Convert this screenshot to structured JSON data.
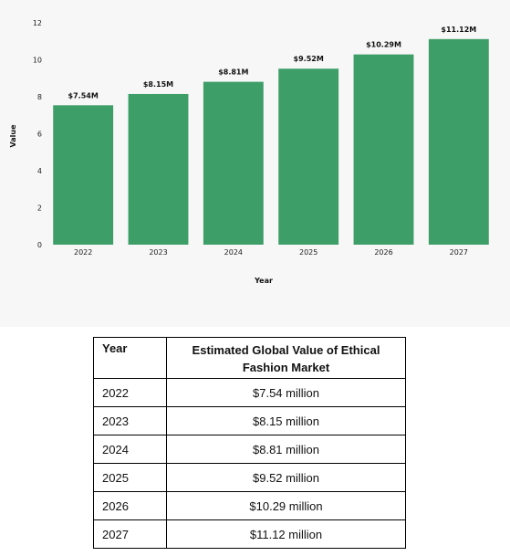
{
  "chart_data": {
    "type": "bar",
    "categories": [
      "2022",
      "2023",
      "2024",
      "2025",
      "2026",
      "2027"
    ],
    "values": [
      7.54,
      8.15,
      8.81,
      9.52,
      10.29,
      11.12
    ],
    "data_labels": [
      "$7.54M",
      "$8.15M",
      "$8.81M",
      "$9.52M",
      "$10.29M",
      "$11.12M"
    ],
    "title": "",
    "xlabel": "Year",
    "ylabel": "Value",
    "ylim": [
      0,
      12
    ],
    "yticks": [
      0,
      2,
      4,
      6,
      8,
      10,
      12
    ],
    "grid": false,
    "bar_color": "#3d9e68",
    "background": "#f7f7f7"
  },
  "table": {
    "headers": [
      "Year",
      "Estimated Global Value of Ethical Fashion Market"
    ],
    "rows": [
      [
        "2022",
        "$7.54 million"
      ],
      [
        "2023",
        "$8.15 million"
      ],
      [
        "2024",
        "$8.81 million"
      ],
      [
        "2025",
        "$9.52 million"
      ],
      [
        "2026",
        "$10.29 million"
      ],
      [
        "2027",
        "$11.12 million"
      ]
    ]
  }
}
